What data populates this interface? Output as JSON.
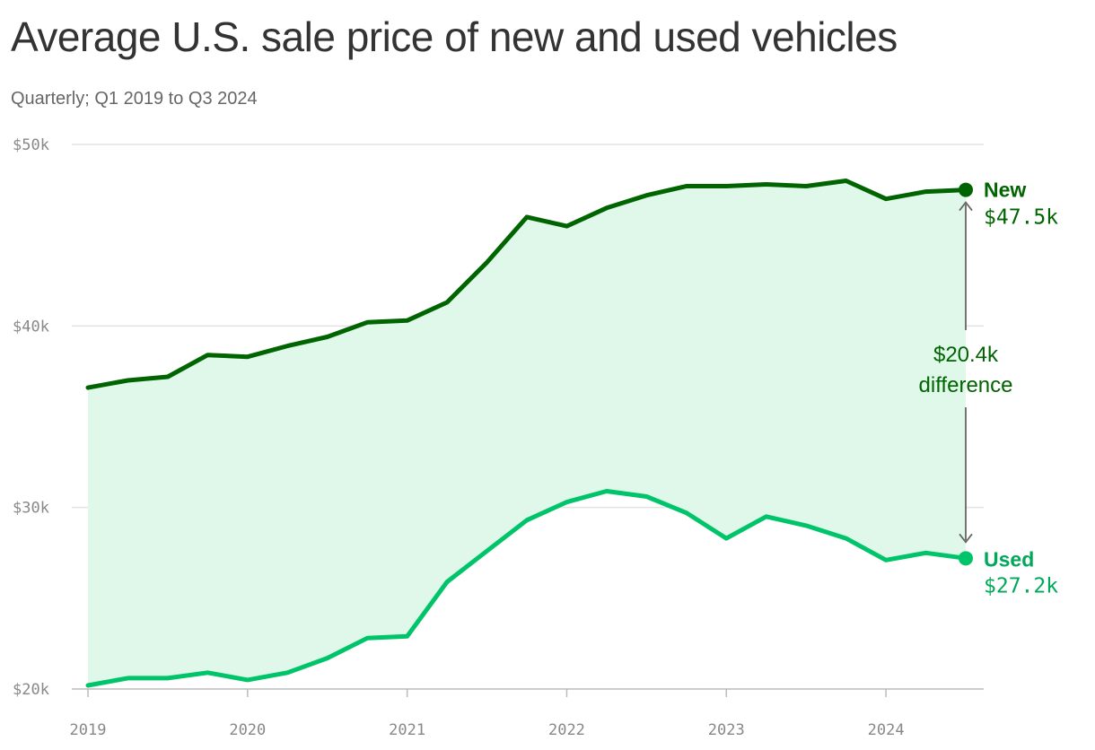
{
  "header": {
    "title": "Average U.S. sale price of new and used vehicles",
    "subtitle": "Quarterly; Q1 2019 to Q3 2024"
  },
  "colors": {
    "new": "#006400",
    "used": "#00c46a",
    "fill": "#e0f8ea",
    "grid": "#e2e2e2",
    "arrow": "#666666"
  },
  "chart_data": {
    "type": "line",
    "title": "Average U.S. sale price of new and used vehicles",
    "subtitle": "Quarterly; Q1 2019 to Q3 2024",
    "x": [
      "Q1 2019",
      "Q2 2019",
      "Q3 2019",
      "Q4 2019",
      "Q1 2020",
      "Q2 2020",
      "Q3 2020",
      "Q4 2020",
      "Q1 2021",
      "Q2 2021",
      "Q3 2021",
      "Q4 2021",
      "Q1 2022",
      "Q2 2022",
      "Q3 2022",
      "Q4 2022",
      "Q1 2023",
      "Q2 2023",
      "Q3 2023",
      "Q4 2023",
      "Q1 2024",
      "Q2 2024",
      "Q3 2024"
    ],
    "series": [
      {
        "name": "New",
        "values": [
          36.6,
          37.0,
          37.2,
          38.4,
          38.3,
          38.9,
          39.4,
          40.2,
          40.3,
          41.3,
          43.5,
          46.0,
          45.5,
          46.5,
          47.2,
          47.7,
          47.7,
          47.8,
          47.7,
          48.0,
          47.0,
          47.4,
          47.5
        ]
      },
      {
        "name": "Used",
        "values": [
          20.2,
          20.6,
          20.6,
          20.9,
          20.5,
          20.9,
          21.7,
          22.8,
          22.9,
          25.9,
          27.6,
          29.3,
          30.3,
          30.9,
          30.6,
          29.7,
          28.3,
          29.5,
          29.0,
          28.3,
          27.1,
          27.5,
          27.2
        ]
      }
    ],
    "ylim": [
      20,
      50
    ],
    "y_ticks": [
      "$20k",
      "$30k",
      "$40k",
      "$50k"
    ],
    "x_ticks": [
      "2019",
      "2020",
      "2021",
      "2022",
      "2023",
      "2024"
    ],
    "end_labels": {
      "new": {
        "name": "New",
        "value": "$47.5k"
      },
      "used": {
        "name": "Used",
        "value": "$27.2k"
      }
    },
    "annotation": {
      "value": "$20.4k",
      "label": "difference"
    },
    "grid": true
  }
}
